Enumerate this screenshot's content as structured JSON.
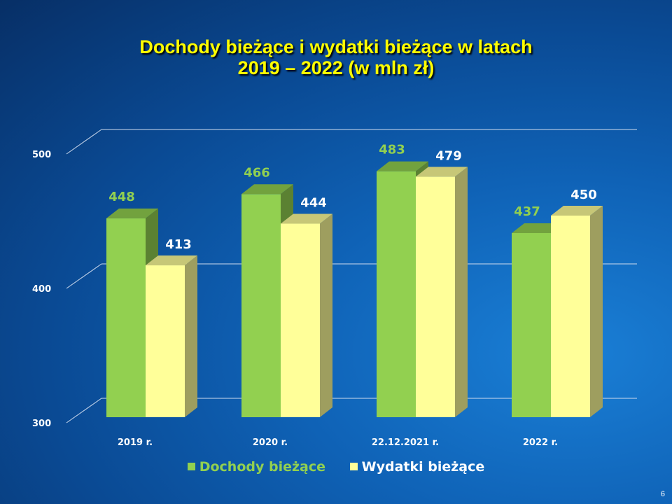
{
  "chart_data": {
    "type": "bar",
    "title_line1": "Dochody bieżące i wydatki bieżące w latach",
    "title_line2": "2019 – 2022 (w mln zł)",
    "categories": [
      "2019 r.",
      "2020 r.",
      "22.12.2021 r.",
      "2022 r."
    ],
    "series": [
      {
        "name": "Dochody bieżące",
        "values": [
          448,
          466,
          483,
          437
        ],
        "color": "#92d050",
        "label_color": "#92d050"
      },
      {
        "name": "Wydatki bieżące",
        "values": [
          413,
          444,
          479,
          450
        ],
        "color": "#ffff99",
        "label_color": "#ffffff"
      }
    ],
    "yticks": [
      300,
      400,
      500
    ],
    "ylim": [
      300,
      500
    ],
    "grid": true,
    "legend_position": "bottom",
    "three_d": true
  },
  "page_number": "6"
}
